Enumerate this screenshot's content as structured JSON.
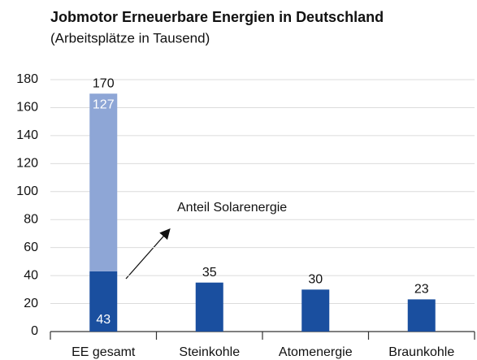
{
  "chart_data": {
    "type": "stacked_bar",
    "title": "Jobmotor Erneuerbare Energien in Deutschland",
    "subtitle": "(Arbeitsplätze in Tausend)",
    "annotation": "Anteil Solarenergie",
    "categories": [
      "EE gesamt",
      "Steinkohle",
      "Atomenergie",
      "Braunkohle"
    ],
    "series": [
      {
        "color": "#1a4f9f",
        "values": [
          43,
          35,
          30,
          23
        ]
      },
      {
        "color": "#8ea6d6",
        "values": [
          127,
          null,
          null,
          null
        ]
      }
    ],
    "totals": [
      170,
      null,
      null,
      null
    ],
    "ylim": [
      0,
      180
    ],
    "yticks": [
      0,
      20,
      40,
      60,
      80,
      100,
      120,
      140,
      160,
      180
    ],
    "grid": true
  }
}
